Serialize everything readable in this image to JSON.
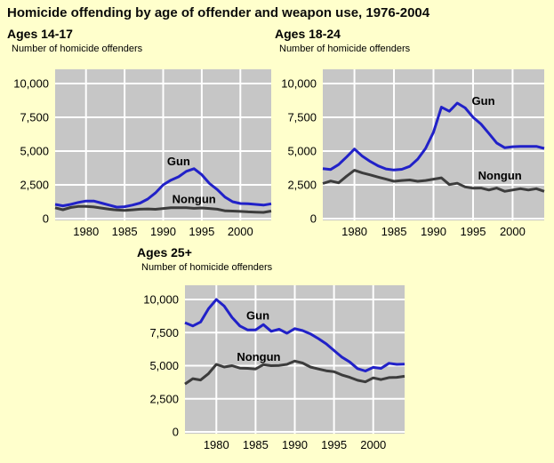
{
  "page": {
    "title": "Homicide offending by age of offender and weapon use, 1976-2004",
    "background": "#FFFFCC"
  },
  "colors": {
    "plot_bg": "#C6C6C6",
    "grid": "#FFFFFF",
    "gun": "#2121C8",
    "nongun": "#3C3C3C",
    "text": "#000000"
  },
  "chart_data": [
    {
      "id": "ages-14-17",
      "type": "line",
      "title": "Ages 14-17",
      "ylabel": "Number of homicide offenders",
      "xlim": [
        1976,
        2004
      ],
      "ylim": [
        0,
        10000
      ],
      "xticks": [
        1980,
        1985,
        1990,
        1995,
        2000
      ],
      "yticks": [
        0,
        2500,
        5000,
        7500,
        10000
      ],
      "ytick_labels": [
        "0",
        "2,500",
        "5,000",
        "7,500",
        "10,000"
      ],
      "x": [
        1976,
        1977,
        1978,
        1979,
        1980,
        1981,
        1982,
        1983,
        1984,
        1985,
        1986,
        1987,
        1988,
        1989,
        1990,
        1991,
        1992,
        1993,
        1994,
        1995,
        1996,
        1997,
        1998,
        1999,
        2000,
        2001,
        2002,
        2003,
        2004
      ],
      "series": [
        {
          "name": "Nongun",
          "values": [
            800,
            660,
            820,
            900,
            900,
            860,
            780,
            700,
            640,
            610,
            650,
            700,
            720,
            690,
            750,
            810,
            800,
            810,
            760,
            790,
            750,
            700,
            580,
            560,
            530,
            500,
            480,
            460,
            560
          ]
        },
        {
          "name": "Gun",
          "values": [
            1050,
            950,
            1050,
            1200,
            1300,
            1300,
            1150,
            1000,
            850,
            880,
            1000,
            1150,
            1450,
            1900,
            2500,
            2850,
            3100,
            3500,
            3700,
            3250,
            2600,
            2150,
            1600,
            1250,
            1120,
            1100,
            1050,
            1000,
            1100
          ]
        }
      ],
      "annotations": [
        {
          "text": "Gun",
          "x": 1992,
          "y": 4200
        },
        {
          "text": "Nongun",
          "x": 1994,
          "y": 1400
        }
      ]
    },
    {
      "id": "ages-18-24",
      "type": "line",
      "title": "Ages 18-24",
      "ylabel": "Number of homicide offenders",
      "xlim": [
        1976,
        2004
      ],
      "ylim": [
        0,
        10000
      ],
      "xticks": [
        1980,
        1985,
        1990,
        1995,
        2000
      ],
      "yticks": [
        0,
        2500,
        5000,
        7500,
        10000
      ],
      "ytick_labels": [
        "0",
        "2,500",
        "5,000",
        "7,500",
        "10,000"
      ],
      "x": [
        1976,
        1977,
        1978,
        1979,
        1980,
        1981,
        1982,
        1983,
        1984,
        1985,
        1986,
        1987,
        1988,
        1989,
        1990,
        1991,
        1992,
        1993,
        1994,
        1995,
        1996,
        1997,
        1998,
        1999,
        2000,
        2001,
        2002,
        2003,
        2004
      ],
      "series": [
        {
          "name": "Nongun",
          "values": [
            2600,
            2780,
            2650,
            3140,
            3580,
            3380,
            3240,
            3070,
            2920,
            2760,
            2820,
            2860,
            2760,
            2820,
            2920,
            3020,
            2520,
            2620,
            2350,
            2250,
            2260,
            2120,
            2260,
            2020,
            2120,
            2220,
            2120,
            2220,
            2020
          ]
        },
        {
          "name": "Gun",
          "values": [
            3700,
            3640,
            4000,
            4560,
            5150,
            4620,
            4230,
            3900,
            3680,
            3600,
            3650,
            3870,
            4400,
            5200,
            6400,
            8250,
            7950,
            8550,
            8200,
            7500,
            7000,
            6300,
            5600,
            5250,
            5320,
            5350,
            5350,
            5350,
            5200
          ]
        }
      ],
      "annotations": [
        {
          "text": "Gun",
          "x": 1996.3,
          "y": 8700
        },
        {
          "text": "Nongun",
          "x": 1998.4,
          "y": 3150
        }
      ]
    },
    {
      "id": "ages-25-plus",
      "type": "line",
      "title": "Ages 25+",
      "ylabel": "Number of homicide offenders",
      "xlim": [
        1976,
        2004
      ],
      "ylim": [
        0,
        10000
      ],
      "xticks": [
        1980,
        1985,
        1990,
        1995,
        2000
      ],
      "yticks": [
        0,
        2500,
        5000,
        7500,
        10000
      ],
      "ytick_labels": [
        "0",
        "2,500",
        "5,000",
        "7,500",
        "10,000"
      ],
      "x": [
        1976,
        1977,
        1978,
        1979,
        1980,
        1981,
        1982,
        1983,
        1984,
        1985,
        1986,
        1987,
        1988,
        1989,
        1990,
        1991,
        1992,
        1993,
        1994,
        1995,
        1996,
        1997,
        1998,
        1999,
        2000,
        2001,
        2002,
        2003,
        2004
      ],
      "series": [
        {
          "name": "Nongun",
          "values": [
            3620,
            4020,
            3920,
            4400,
            5100,
            4900,
            5000,
            4820,
            4800,
            4750,
            5080,
            5000,
            5020,
            5100,
            5350,
            5200,
            4900,
            4750,
            4620,
            4550,
            4300,
            4120,
            3900,
            3780,
            4080,
            3950,
            4100,
            4120,
            4200
          ]
        },
        {
          "name": "Gun",
          "values": [
            8250,
            8000,
            8300,
            9300,
            10000,
            9500,
            8650,
            8000,
            7700,
            7700,
            8100,
            7600,
            7750,
            7450,
            7800,
            7650,
            7400,
            7050,
            6650,
            6150,
            5650,
            5280,
            4780,
            4600,
            4870,
            4800,
            5180,
            5100,
            5120
          ]
        }
      ],
      "annotations": [
        {
          "text": "Gun",
          "x": 1985.3,
          "y": 8750
        },
        {
          "text": "Nongun",
          "x": 1985.4,
          "y": 5650
        }
      ]
    }
  ]
}
